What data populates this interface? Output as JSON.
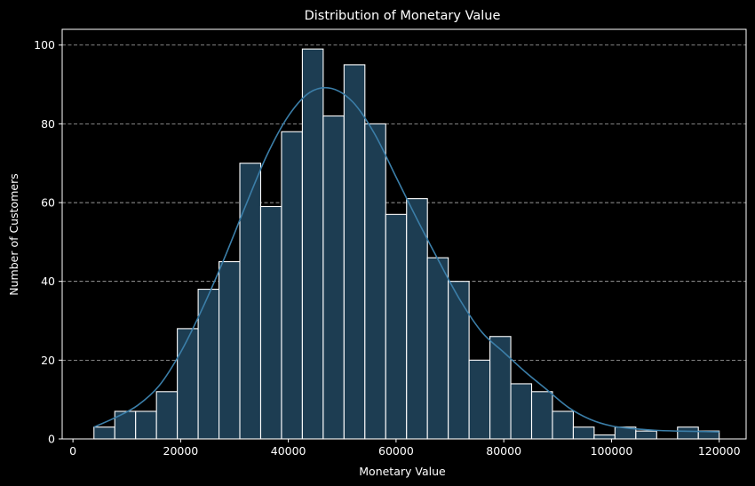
{
  "chart_data": {
    "type": "bar",
    "title": "Distribution of Monetary Value",
    "xlabel": "Monetary Value",
    "ylabel": "Number of Customers",
    "xlim": [
      -2000,
      125000
    ],
    "ylim": [
      0,
      104
    ],
    "x_ticks": [
      0,
      20000,
      40000,
      60000,
      80000,
      100000,
      120000
    ],
    "x_tick_labels": [
      "0",
      "20000",
      "40000",
      "60000",
      "80000",
      "100000",
      "120000"
    ],
    "y_ticks": [
      0,
      20,
      40,
      60,
      80,
      100
    ],
    "y_tick_labels": [
      "0",
      "20",
      "40",
      "60",
      "80",
      "100"
    ],
    "grid": "y, dashed",
    "legend": "none",
    "bins": {
      "start": 3900,
      "width": 3870,
      "values": [
        3,
        7,
        7,
        12,
        28,
        38,
        45,
        70,
        59,
        78,
        99,
        82,
        95,
        80,
        57,
        61,
        46,
        40,
        20,
        26,
        14,
        12,
        7,
        3,
        1,
        3,
        2,
        0,
        3,
        2
      ]
    },
    "kde": {
      "x": [
        3900,
        8000,
        12000,
        16000,
        20000,
        24000,
        28000,
        32000,
        36000,
        40000,
        44000,
        48000,
        52000,
        56000,
        60000,
        64000,
        68000,
        72000,
        76000,
        80000,
        84000,
        88000,
        92000,
        96000,
        100000,
        104000,
        108000,
        112000,
        116000,
        120000
      ],
      "y": [
        3,
        5.5,
        8.5,
        13.5,
        22,
        33,
        45.5,
        59,
        72,
        82,
        88,
        89,
        85.5,
        77.5,
        66.5,
        55.5,
        45,
        35,
        27,
        22,
        17,
        12.5,
        8,
        5,
        3.3,
        2.6,
        2.2,
        2,
        1.9,
        1.8
      ]
    },
    "colors": {
      "background": "#000000",
      "bar_fill": "#1d3d52",
      "bar_edge": "#ffffff",
      "kde_line": "#3b7ea8",
      "grid": "#b0b0b0",
      "axes": "#ffffff",
      "text": "#ffffff"
    }
  }
}
